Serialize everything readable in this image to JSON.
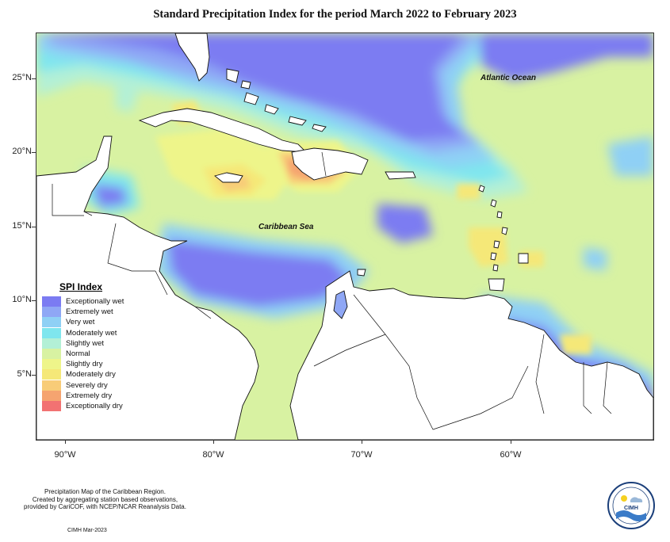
{
  "title": "Standard Precipitation Index for the period March 2022 to February 2023",
  "axes": {
    "y_ticks": [
      "25°N",
      "20°N",
      "15°N",
      "10°N",
      "5°N"
    ],
    "x_ticks": [
      "90°W",
      "80°W",
      "70°W",
      "60°W"
    ]
  },
  "labels": {
    "atlantic": "Atlantic Ocean",
    "caribbean": "Caribbean Sea"
  },
  "legend": {
    "title": "SPI Index",
    "items": [
      {
        "label": "Exceptionally wet",
        "color": "#7b7bf2"
      },
      {
        "label": "Extremely wet",
        "color": "#8fa7f5"
      },
      {
        "label": "Very wet",
        "color": "#8fd0f5"
      },
      {
        "label": "Moderately wet",
        "color": "#7fe6ee"
      },
      {
        "label": "Slightly wet",
        "color": "#b3f0d6"
      },
      {
        "label": "Normal",
        "color": "#d8f2a2"
      },
      {
        "label": "Slightly dry",
        "color": "#eef58a"
      },
      {
        "label": "Moderately dry",
        "color": "#f5e878"
      },
      {
        "label": "Severely dry",
        "color": "#f8cc78"
      },
      {
        "label": "Extremely dry",
        "color": "#f5a470"
      },
      {
        "label": "Exceptionally dry",
        "color": "#f27272"
      }
    ]
  },
  "footer": {
    "line1": "Precipitation Map of the Caribbean Region.",
    "line2": "Created by aggregating station based observations,",
    "line3": "provided by CariCOF, with NCEP/NCAR Reanalysis Data.",
    "credit": "CIMH Mar-2023"
  },
  "logo": {
    "text": "CIMH"
  }
}
